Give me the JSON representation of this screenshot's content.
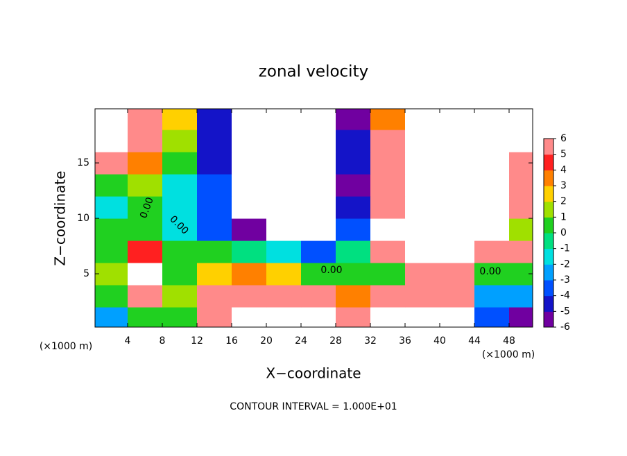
{
  "chart_data": {
    "type": "heatmap",
    "title": "zonal velocity",
    "x_label": "X−coordinate",
    "y_label": "Z−coordinate",
    "x_unit_labels": [
      "(×1000 m)",
      "(×1000 m)"
    ],
    "footer": "CONTOUR INTERVAL = 1.000E+01",
    "contour_labels": [
      "0.00",
      "0.00",
      "0.00",
      "0.00"
    ],
    "x": [
      2,
      6,
      10,
      14,
      18,
      22,
      26,
      30,
      34,
      38,
      42,
      46,
      50
    ],
    "y": [
      1,
      3,
      5,
      7,
      9,
      11,
      13,
      15,
      17,
      19
    ],
    "values": [
      [
        -3,
        0,
        0.5,
        6,
        8,
        8,
        8,
        5,
        8,
        8,
        8,
        -4,
        -6
      ],
      [
        0.5,
        5,
        1,
        5,
        6,
        5,
        6,
        3,
        5,
        6,
        5,
        -3,
        -3
      ],
      [
        1,
        8,
        0.5,
        2,
        3,
        2,
        0,
        0,
        0,
        5,
        5,
        0,
        0.5
      ],
      [
        0.5,
        4,
        0,
        0,
        -0.5,
        -2,
        -4,
        -0.5,
        5,
        8,
        7,
        5,
        5
      ],
      [
        0,
        0.5,
        -1.5,
        -4,
        -6,
        -8,
        -8,
        -4,
        8,
        9,
        9,
        7,
        1
      ],
      [
        -1.5,
        0,
        -2,
        -4,
        -8,
        -10,
        -8,
        -5,
        5,
        9,
        9,
        7,
        5
      ],
      [
        0.5,
        1,
        -2,
        -4,
        -10,
        -10,
        -8,
        -6,
        5,
        9,
        9,
        7,
        6
      ],
      [
        5,
        3,
        0,
        -4.5,
        -10,
        -10,
        -7,
        -5,
        5,
        9,
        9,
        8,
        5
      ],
      [
        8,
        5,
        1,
        -4.5,
        -10,
        -10,
        -8,
        -5,
        5,
        9,
        9,
        8,
        7
      ],
      [
        8,
        5,
        2,
        -5,
        -10,
        -10,
        -8,
        -6,
        3,
        9,
        9,
        8,
        8
      ]
    ],
    "xlim": [
      0.24,
      50.72
    ],
    "ylim": [
      0.19,
      19.88
    ],
    "xticks": [
      4,
      8,
      12,
      16,
      20,
      24,
      28,
      32,
      36,
      40,
      44,
      48
    ],
    "yticks": [
      5,
      10,
      15
    ],
    "zlim": [
      -6,
      6
    ],
    "colorbar_ticks": [
      6,
      5,
      4,
      3,
      2,
      1,
      0,
      -1,
      -2,
      -3,
      -4,
      -5,
      -6
    ],
    "colors": [
      "#7000a0",
      "#1414c8",
      "#0050ff",
      "#00a0ff",
      "#00e0e0",
      "#00e080",
      "#20d020",
      "#a0e000",
      "#ffd000",
      "#ff8000",
      "#ff2020",
      "#ff8a8a"
    ],
    "out_of_range_color": "#ffffff"
  }
}
